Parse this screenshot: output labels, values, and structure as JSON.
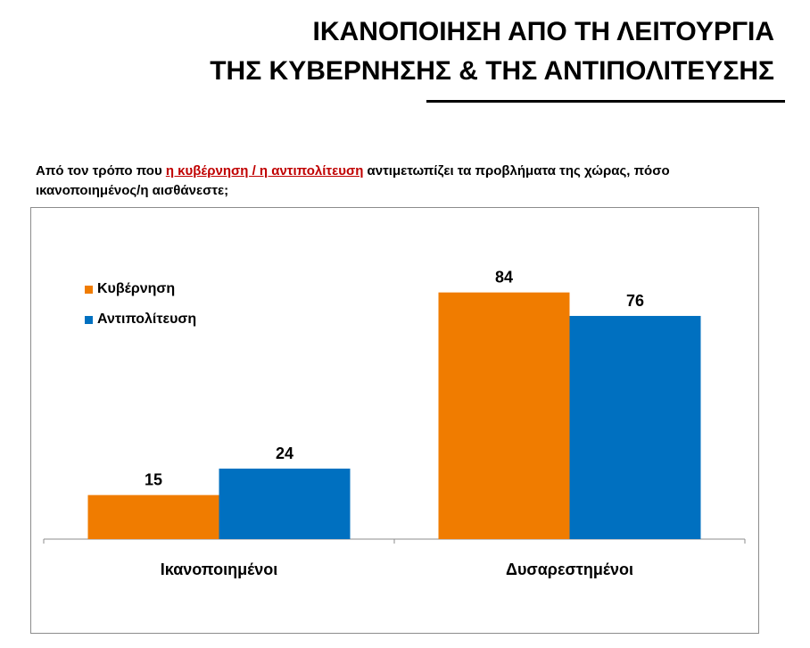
{
  "title": {
    "line1": "ΙΚΑΝΟΠΟΙΗΣΗ ΑΠΟ ΤΗ ΛΕΙΤΟΥΡΓΙΑ",
    "line2": "ΤΗΣ ΚΥΒΕΡΝΗΣΗΣ & ΤΗΣ ΑΝΤΙΠΟΛΙΤΕΥΣΗΣ"
  },
  "question": {
    "before": "Από τον τρόπο που ",
    "highlight": "η κυβέρνηση / η αντιπολίτευση",
    "after": " αντιμετωπίζει τα προβλήματα της χώρας, πόσο ικανοποιημένος/η αισθάνεστε;"
  },
  "colors": {
    "orange": "#f07c00",
    "blue": "#0070c0",
    "highlight": "#c00000"
  },
  "chart_data": {
    "type": "bar",
    "categories": [
      "Ικανοποιημένοι",
      "Δυσαρεστημένοι"
    ],
    "series": [
      {
        "name": "Κυβέρνηση",
        "values": [
          15,
          84
        ],
        "color": "#f07c00"
      },
      {
        "name": "Αντιπολίτευση",
        "values": [
          24,
          76
        ],
        "color": "#0070c0"
      }
    ],
    "ylim": [
      0,
      100
    ],
    "data_labels": true,
    "grid": false,
    "legend_position": "top-left"
  }
}
